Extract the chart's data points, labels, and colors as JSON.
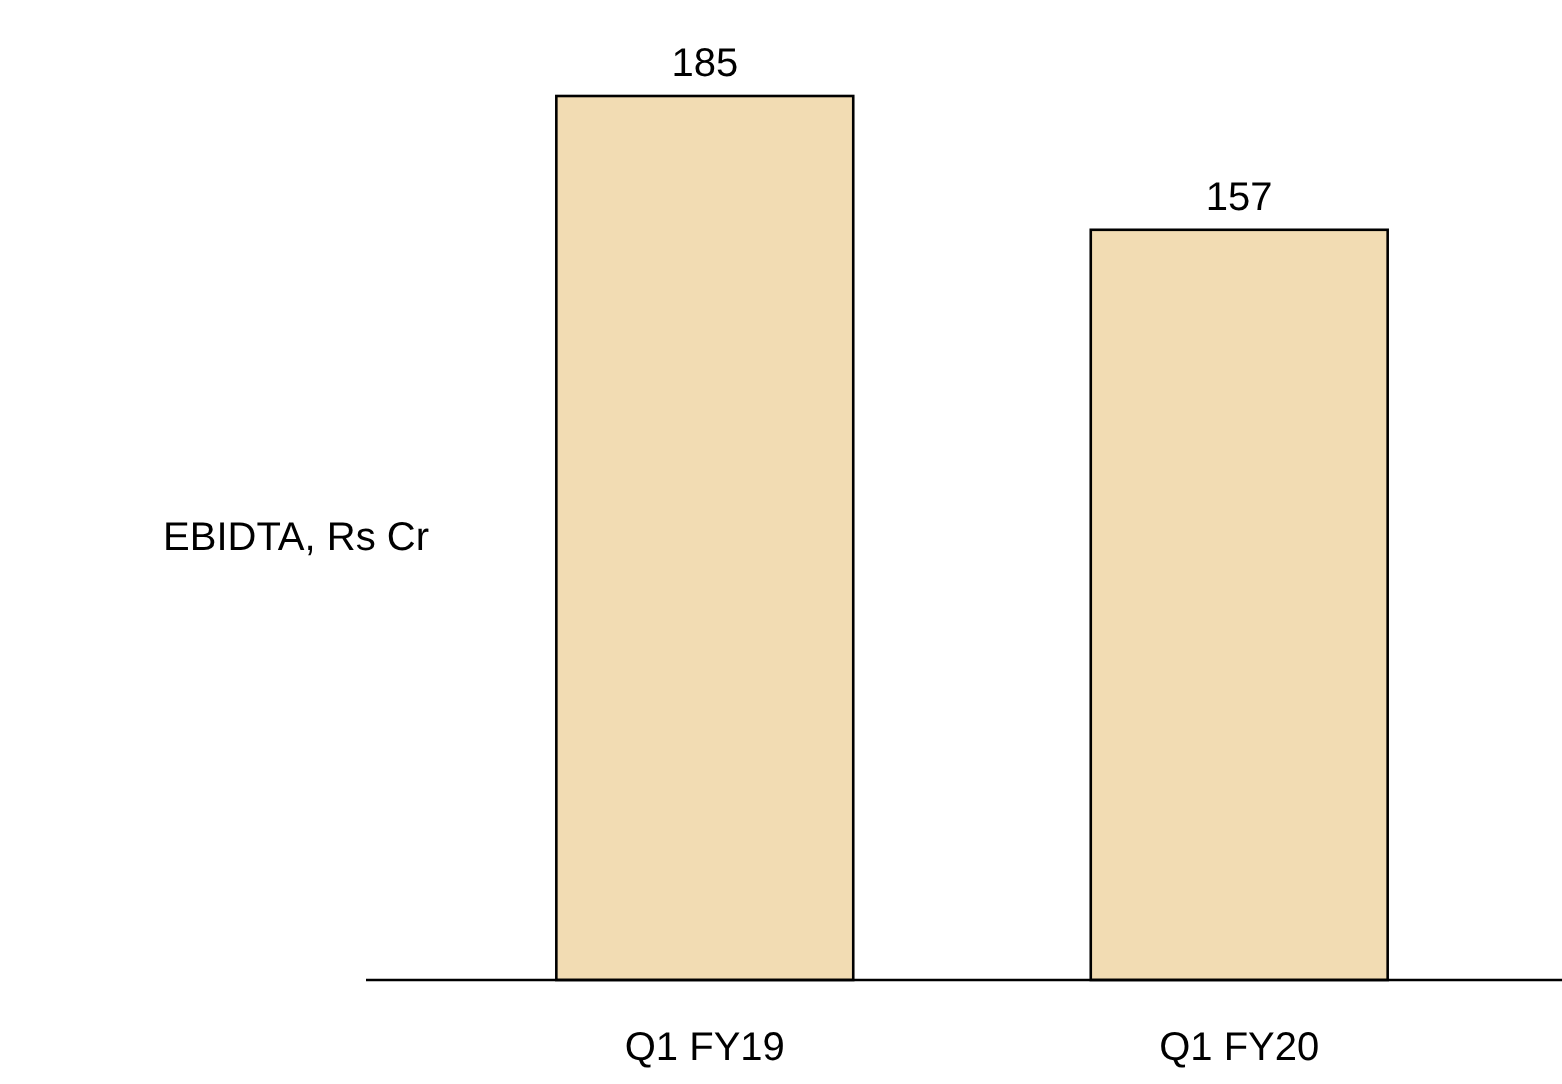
{
  "chart_data": {
    "type": "bar",
    "ylabel": "EBIDTA, Rs Cr",
    "categories": [
      "Q1 FY19",
      "Q1 FY20"
    ],
    "values": [
      185,
      157
    ],
    "color": "#f2dcb3",
    "data_labels": true
  }
}
